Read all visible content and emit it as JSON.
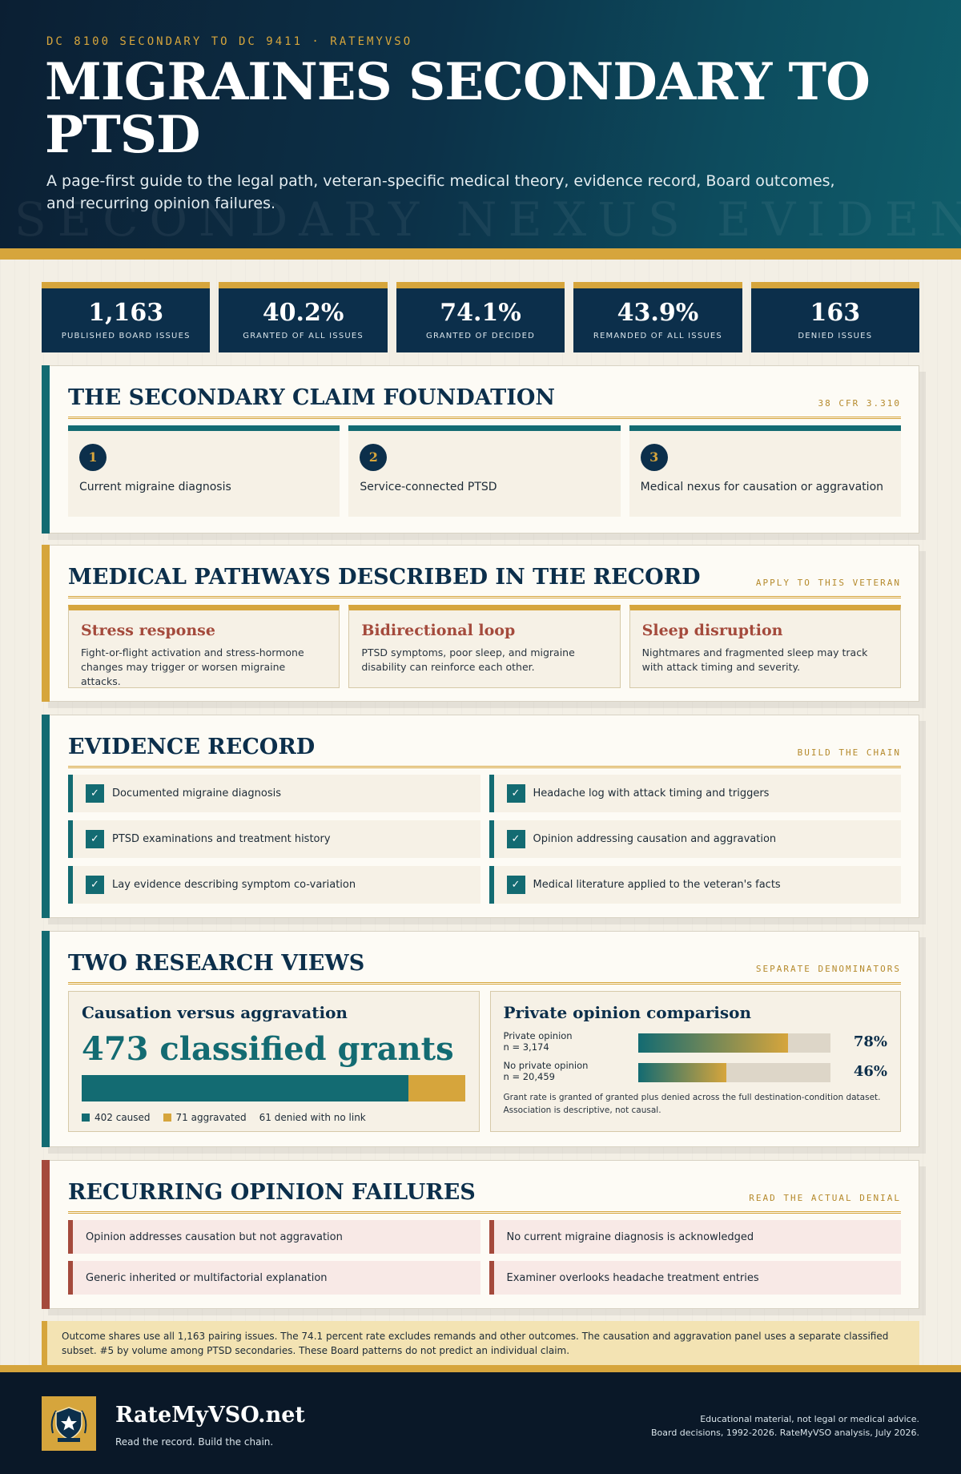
{
  "hero": {
    "kicker": "DC 8100 SECONDARY TO DC 9411 · RATEMYVSO",
    "title": "MIGRAINES SECONDARY TO PTSD",
    "subtitle": "A page-first guide to the legal path, veteran-specific medical theory, evidence record, Board outcomes, and recurring opinion failures.",
    "ghost_text": "SECONDARY NEXUS EVIDENCE"
  },
  "stats": [
    {
      "value": "1,163",
      "label": "PUBLISHED BOARD ISSUES"
    },
    {
      "value": "40.2%",
      "label": "GRANTED OF ALL ISSUES"
    },
    {
      "value": "74.1%",
      "label": "GRANTED OF DECIDED"
    },
    {
      "value": "43.9%",
      "label": "REMANDED OF ALL ISSUES"
    },
    {
      "value": "163",
      "label": "DENIED ISSUES"
    }
  ],
  "foundation": {
    "title": "THE SECONDARY CLAIM FOUNDATION",
    "tag": "38 CFR 3.310",
    "items": [
      {
        "num": "1",
        "text": "Current migraine diagnosis"
      },
      {
        "num": "2",
        "text": "Service-connected PTSD"
      },
      {
        "num": "3",
        "text": "Medical nexus for causation or aggravation"
      }
    ]
  },
  "pathways": {
    "title": "MEDICAL PATHWAYS DESCRIBED IN THE RECORD",
    "tag": "APPLY TO THIS VETERAN",
    "items": [
      {
        "title": "Stress response",
        "text": "Fight-or-flight activation and stress-hormone changes may trigger or worsen migraine attacks."
      },
      {
        "title": "Bidirectional loop",
        "text": "PTSD symptoms, poor sleep, and migraine disability can reinforce each other."
      },
      {
        "title": "Sleep disruption",
        "text": "Nightmares and fragmented sleep may track with attack timing and severity."
      }
    ]
  },
  "evidence": {
    "title": "EVIDENCE RECORD",
    "tag": "BUILD THE CHAIN",
    "check_glyph": "✓",
    "items": [
      "Documented migraine diagnosis",
      "Headache log with attack timing and triggers",
      "PTSD examinations and treatment history",
      "Opinion addressing causation and aggravation",
      "Lay evidence describing symptom co-variation",
      "Medical literature applied to the veteran's facts"
    ]
  },
  "research": {
    "title": "TWO RESEARCH VIEWS",
    "tag": "SEPARATE DENOMINATORS",
    "causation": {
      "title": "Causation versus aggravation",
      "big": "473 classified grants",
      "caused": 402,
      "aggravated": 71,
      "legend": [
        "402 caused",
        "71 aggravated",
        "61 denied with no link"
      ],
      "colors": {
        "caused": "#136b72",
        "aggravated": "#d6a53c"
      }
    },
    "opinion": {
      "title": "Private opinion comparison",
      "rows": [
        {
          "label": "Private opinion",
          "n": "n = 3,174",
          "value": 78,
          "display": "78%"
        },
        {
          "label": "No private opinion",
          "n": "n = 20,459",
          "value": 46,
          "display": "46%"
        }
      ],
      "note": "Grant rate is granted of granted plus denied across the full destination-condition dataset. Association is descriptive, not causal."
    }
  },
  "failures": {
    "title": "RECURRING OPINION FAILURES",
    "tag": "READ THE ACTUAL DENIAL",
    "items": [
      "Opinion addresses causation but not aggravation",
      "No current migraine diagnosis is acknowledged",
      "Generic inherited or multifactorial explanation",
      "Examiner overlooks headache treatment entries"
    ]
  },
  "footnote": "Outcome shares use all 1,163 pairing issues. The 74.1 percent rate excludes remands and other outcomes. The causation and aggravation panel uses a separate classified subset. #5 by volume among PTSD secondaries. These Board patterns do not predict an individual claim.",
  "footer": {
    "brand": "RateMyVSO.net",
    "tagline": "Read the record. Build the chain.",
    "disclaimer": "Educational material, not legal or medical advice.",
    "source": "Board decisions, 1992-2026. RateMyVSO analysis, July 2026.",
    "logo_icon": "shield-star-icon"
  }
}
